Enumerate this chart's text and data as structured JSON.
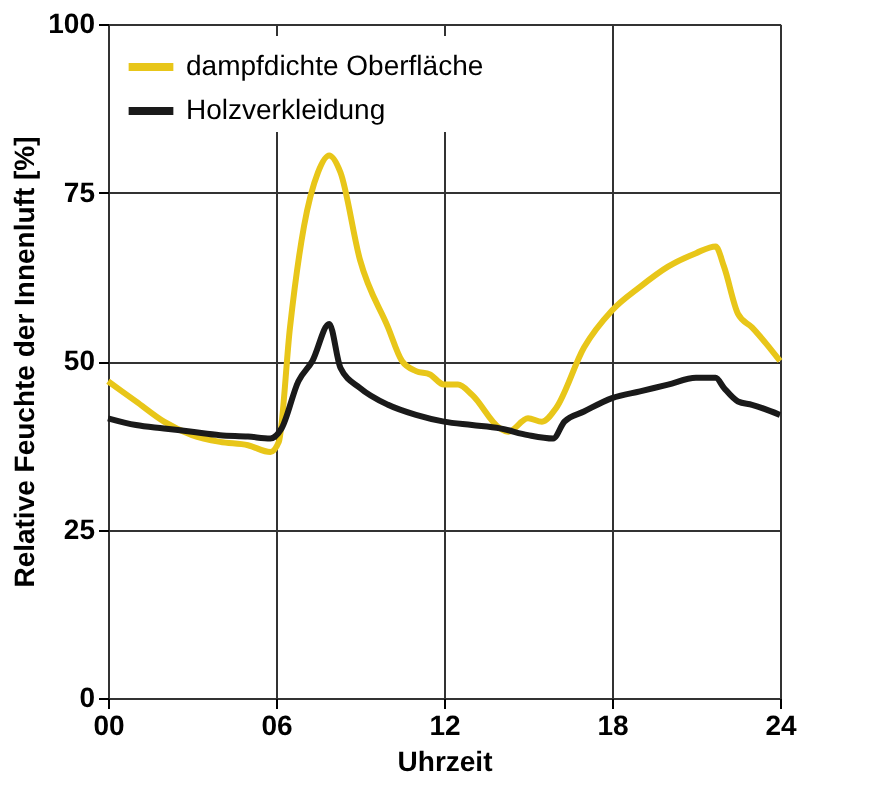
{
  "chart_data": {
    "type": "line",
    "xlabel": "Uhrzeit",
    "ylabel": "Relative Feuchte der Innenluft [%]",
    "xlim": [
      0,
      24
    ],
    "xticks": [
      {
        "value": 0,
        "label": "00"
      },
      {
        "value": 6,
        "label": "06"
      },
      12,
      18,
      24
    ],
    "ylim": [
      0,
      100
    ],
    "yticks": [
      0,
      25,
      50,
      75,
      100
    ],
    "grid": true,
    "legend": "top left",
    "line_style": "solid",
    "marker": "none",
    "series": [
      {
        "name": "dampfdichte Oberfläche",
        "color": "#e8c619",
        "x": [
          0,
          1,
          2,
          3,
          4,
          5,
          5.8,
          6.1,
          6.5,
          7,
          7.5,
          7.9,
          8.3,
          9,
          10,
          10.5,
          11,
          11.5,
          12,
          12.5,
          13,
          14,
          14.3,
          15,
          15.5,
          16,
          17,
          18,
          19,
          20,
          21,
          21.7,
          22,
          22.5,
          23,
          24
        ],
        "values": [
          47,
          44,
          41,
          39,
          38,
          37.5,
          36.5,
          38,
          55,
          70,
          78,
          80.5,
          78,
          65,
          55,
          50,
          48.5,
          48,
          46.5,
          46.5,
          45,
          40,
          39.5,
          41.5,
          41,
          43,
          52,
          57.5,
          61,
          64,
          66,
          67,
          64,
          57,
          55,
          50
        ]
      },
      {
        "name": "Holzverkleidung",
        "color": "#1a1a1a",
        "x": [
          0,
          1,
          2,
          3,
          4,
          5,
          5.8,
          6.2,
          6.8,
          7.3,
          7.9,
          8.3,
          9,
          10,
          11,
          12,
          13,
          14,
          15,
          15.9,
          16.3,
          17,
          18,
          19,
          20,
          21,
          21.7,
          22,
          22.5,
          23,
          24
        ],
        "values": [
          41.5,
          40.5,
          40,
          39.5,
          39,
          38.8,
          38.5,
          40,
          47,
          50,
          55.5,
          49,
          46,
          43.5,
          42,
          41,
          40.5,
          40,
          39,
          38.5,
          41,
          42.5,
          44.5,
          45.5,
          46.5,
          47.5,
          47.5,
          46,
          44,
          43.5,
          42
        ]
      }
    ]
  }
}
